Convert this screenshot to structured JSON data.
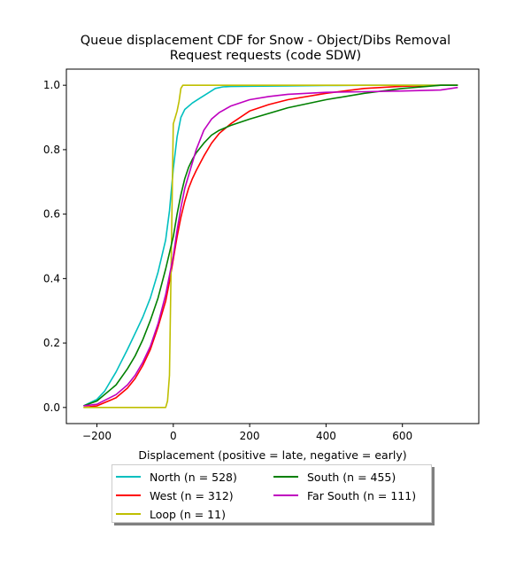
{
  "title_line1": "Queue displacement CDF for Snow - Object/Dibs Removal",
  "title_line2": "Request  requests (code SDW)",
  "chart_data": {
    "type": "line",
    "title": "Queue displacement CDF for Snow - Object/Dibs Removal Request  requests (code SDW)",
    "xlabel": "Displacement (positive = late, negative = early)",
    "ylabel": "",
    "xlim": [
      -280,
      800
    ],
    "ylim": [
      -0.05,
      1.05
    ],
    "xticks": [
      -200,
      0,
      200,
      400,
      600
    ],
    "xtick_labels": [
      "−200",
      "0",
      "200",
      "400",
      "600"
    ],
    "yticks": [
      0.0,
      0.2,
      0.4,
      0.6,
      0.8,
      1.0
    ],
    "ytick_labels": [
      "0.0",
      "0.2",
      "0.4",
      "0.6",
      "0.8",
      "1.0"
    ],
    "grid": false,
    "legend_position": "below plot, two columns",
    "series": [
      {
        "name": "North (n = 528)",
        "color": "#00bfbf",
        "x": [
          -235,
          -200,
          -180,
          -150,
          -120,
          -100,
          -80,
          -60,
          -40,
          -20,
          -10,
          0,
          10,
          20,
          30,
          50,
          70,
          90,
          110,
          130,
          150,
          200,
          300,
          400,
          500,
          600,
          745
        ],
        "y": [
          0.005,
          0.025,
          0.05,
          0.11,
          0.18,
          0.23,
          0.28,
          0.34,
          0.42,
          0.52,
          0.61,
          0.74,
          0.84,
          0.9,
          0.925,
          0.945,
          0.96,
          0.975,
          0.99,
          0.995,
          0.996,
          0.997,
          0.998,
          0.999,
          1.0,
          1.0,
          1.0
        ]
      },
      {
        "name": "West (n = 312)",
        "color": "#ff0000",
        "x": [
          -235,
          -200,
          -150,
          -120,
          -100,
          -80,
          -60,
          -40,
          -20,
          -10,
          0,
          10,
          20,
          30,
          40,
          50,
          60,
          80,
          100,
          120,
          150,
          200,
          250,
          300,
          400,
          500,
          600,
          700,
          745
        ],
        "y": [
          0.0,
          0.005,
          0.03,
          0.06,
          0.09,
          0.13,
          0.18,
          0.25,
          0.33,
          0.39,
          0.46,
          0.53,
          0.59,
          0.64,
          0.68,
          0.71,
          0.735,
          0.78,
          0.82,
          0.85,
          0.88,
          0.92,
          0.94,
          0.955,
          0.975,
          0.99,
          0.997,
          1.0,
          1.0
        ]
      },
      {
        "name": "Loop (n = 11)",
        "color": "#bfbf00",
        "x": [
          -235,
          -20,
          -15,
          -10,
          -5,
          0,
          5,
          10,
          15,
          20,
          25,
          30,
          40,
          100,
          745
        ],
        "y": [
          0.0,
          0.0,
          0.02,
          0.1,
          0.5,
          0.88,
          0.9,
          0.92,
          0.95,
          0.99,
          1.0,
          1.0,
          1.0,
          1.0,
          1.0
        ]
      },
      {
        "name": "South (n = 455)",
        "color": "#008000",
        "x": [
          -235,
          -200,
          -150,
          -120,
          -100,
          -80,
          -60,
          -40,
          -20,
          0,
          10,
          20,
          30,
          40,
          50,
          60,
          80,
          100,
          120,
          150,
          200,
          300,
          400,
          500,
          600,
          700,
          745
        ],
        "y": [
          0.005,
          0.02,
          0.07,
          0.12,
          0.16,
          0.21,
          0.27,
          0.34,
          0.43,
          0.53,
          0.6,
          0.66,
          0.71,
          0.745,
          0.77,
          0.79,
          0.82,
          0.845,
          0.86,
          0.875,
          0.895,
          0.93,
          0.955,
          0.975,
          0.99,
          1.0,
          1.0
        ]
      },
      {
        "name": "Far South (n = 111)",
        "color": "#bf00bf",
        "x": [
          -235,
          -200,
          -150,
          -120,
          -100,
          -80,
          -60,
          -40,
          -20,
          0,
          10,
          20,
          30,
          40,
          50,
          60,
          80,
          100,
          120,
          150,
          200,
          250,
          300,
          400,
          500,
          600,
          700,
          745
        ],
        "y": [
          0.005,
          0.01,
          0.04,
          0.07,
          0.1,
          0.14,
          0.19,
          0.26,
          0.35,
          0.47,
          0.55,
          0.62,
          0.68,
          0.72,
          0.76,
          0.8,
          0.86,
          0.895,
          0.915,
          0.935,
          0.955,
          0.965,
          0.972,
          0.978,
          0.98,
          0.982,
          0.985,
          0.993
        ]
      }
    ]
  }
}
